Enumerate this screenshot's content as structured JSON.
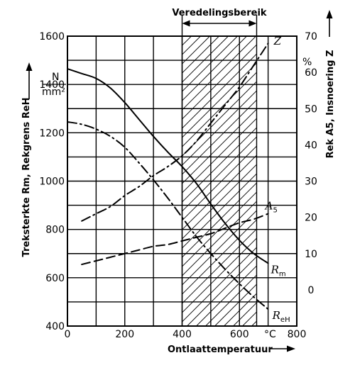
{
  "chart_data": {
    "type": "line",
    "xlabel": "Ontlaattemperatuur",
    "x_unit": "°C",
    "xlim": [
      0,
      800
    ],
    "x_ticks": [
      "0",
      "200",
      "400",
      "600",
      "800"
    ],
    "y_left_label": "Treksterkte Rm, Rekgrens ReH",
    "y_left_unit_num": "N",
    "y_left_unit_den": "mm²",
    "ylim_left": [
      400,
      1600
    ],
    "y_left_ticks": [
      "400",
      "600",
      "800",
      "1000",
      "1200",
      "1400",
      "1600"
    ],
    "y_right_label": "Rek A5, Insnoering Z",
    "y_right_unit": "%",
    "ylim_right": [
      -10,
      70
    ],
    "y_right_ticks": [
      "0",
      "10",
      "20",
      "30",
      "40",
      "50",
      "60",
      "70"
    ],
    "grid": true,
    "annotation": {
      "text": "Veredelingsbereik",
      "x_range": [
        400,
        660
      ]
    },
    "series": [
      {
        "name": "Rm",
        "name_main": "R",
        "name_sub": "m",
        "axis": "left",
        "style": "solid",
        "x": [
          0,
          50,
          100,
          150,
          200,
          250,
          300,
          350,
          400,
          450,
          500,
          550,
          600,
          650,
          700
        ],
        "y": [
          1465,
          1445,
          1425,
          1385,
          1325,
          1255,
          1185,
          1120,
          1060,
          990,
          905,
          825,
          755,
          700,
          660
        ]
      },
      {
        "name": "ReH",
        "name_main": "R",
        "name_sub": "eH",
        "axis": "left",
        "style": "dashdot",
        "x": [
          0,
          50,
          100,
          150,
          200,
          250,
          300,
          350,
          400,
          450,
          500,
          550,
          600,
          650,
          700
        ],
        "y": [
          1245,
          1235,
          1215,
          1185,
          1140,
          1075,
          1005,
          930,
          850,
          770,
          700,
          635,
          575,
          520,
          470
        ]
      },
      {
        "name": "Z",
        "name_main": "Z",
        "name_sub": "",
        "axis": "right",
        "style": "dashdot",
        "x": [
          50,
          100,
          150,
          200,
          250,
          300,
          350,
          400,
          450,
          500,
          550,
          600,
          650,
          700
        ],
        "y": [
          19,
          21,
          23,
          26,
          28.5,
          31.5,
          34,
          37,
          41,
          46,
          51,
          56,
          62,
          68
        ]
      },
      {
        "name": "A5",
        "name_main": "A",
        "name_sub": "5",
        "axis": "right",
        "style": "dashed",
        "x": [
          50,
          100,
          150,
          200,
          250,
          300,
          350,
          400,
          450,
          500,
          550,
          600,
          650,
          700
        ],
        "y": [
          7,
          8,
          9,
          10,
          11,
          12,
          12.5,
          13.5,
          14.5,
          15.5,
          17,
          18.5,
          19.5,
          21
        ]
      }
    ]
  }
}
